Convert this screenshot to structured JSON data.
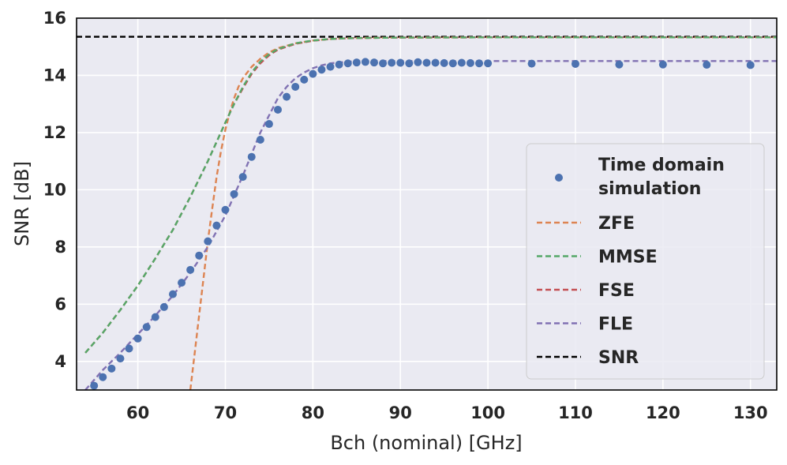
{
  "chart_data": {
    "type": "line",
    "title": "",
    "xlabel": "Bch (nominal) [GHz]",
    "ylabel": "SNR [dB]",
    "xlim": [
      53,
      133
    ],
    "ylim": [
      3,
      16
    ],
    "xticks": [
      60,
      70,
      80,
      90,
      100,
      110,
      120,
      130
    ],
    "yticks": [
      4,
      6,
      8,
      10,
      12,
      14,
      16
    ],
    "grid": true,
    "legend_position": "right",
    "colors": {
      "background": "#eaeaf2",
      "grid": "#ffffff",
      "time_domain": "#4c72b0",
      "zfe": "#dd8452",
      "mmse": "#55a868",
      "fse": "#c44e52",
      "fle": "#8172b3",
      "snr": "#000000"
    },
    "series": [
      {
        "name": "Time domain simulation",
        "name_lines": [
          "Time domain",
          "simulation"
        ],
        "style": "scatter",
        "color": "#4c72b0",
        "x": [
          55,
          56,
          57,
          58,
          59,
          60,
          61,
          62,
          63,
          64,
          65,
          66,
          67,
          68,
          69,
          70,
          71,
          72,
          73,
          74,
          75,
          76,
          77,
          78,
          79,
          80,
          81,
          82,
          83,
          84,
          85,
          86,
          87,
          88,
          89,
          90,
          91,
          92,
          93,
          94,
          95,
          96,
          97,
          98,
          99,
          100,
          105,
          110,
          115,
          120,
          125,
          130
        ],
        "y": [
          3.15,
          3.45,
          3.75,
          4.1,
          4.45,
          4.8,
          5.2,
          5.55,
          5.9,
          6.35,
          6.75,
          7.2,
          7.7,
          8.2,
          8.75,
          9.3,
          9.85,
          10.45,
          11.15,
          11.75,
          12.3,
          12.8,
          13.25,
          13.6,
          13.85,
          14.05,
          14.2,
          14.3,
          14.38,
          14.42,
          14.45,
          14.47,
          14.45,
          14.42,
          14.44,
          14.44,
          14.42,
          14.46,
          14.44,
          14.44,
          14.43,
          14.42,
          14.44,
          14.43,
          14.42,
          14.42,
          14.41,
          14.4,
          14.38,
          14.38,
          14.37,
          14.36
        ]
      },
      {
        "name": "ZFE",
        "style": "dashed",
        "color": "#dd8452",
        "x": [
          66,
          66.5,
          67,
          67.5,
          68,
          68.5,
          69,
          69.5,
          70,
          70.5,
          71,
          71.5,
          72,
          73,
          74,
          75,
          76,
          78,
          80,
          82,
          84,
          86,
          90,
          100,
          110,
          120,
          133
        ],
        "y": [
          3.0,
          4.3,
          5.6,
          6.9,
          8.2,
          9.35,
          10.45,
          11.35,
          12.1,
          12.7,
          13.2,
          13.6,
          13.9,
          14.3,
          14.58,
          14.8,
          14.95,
          15.12,
          15.22,
          15.27,
          15.3,
          15.31,
          15.32,
          15.33,
          15.33,
          15.33,
          15.33
        ]
      },
      {
        "name": "MMSE",
        "style": "dashed",
        "color": "#55a868",
        "x": [
          54,
          56,
          58,
          60,
          62,
          64,
          66,
          68,
          70,
          71,
          72,
          73,
          74,
          75,
          76,
          78,
          80,
          82,
          84,
          86,
          90,
          100,
          110,
          120,
          133
        ],
        "y": [
          4.3,
          5.0,
          5.8,
          6.65,
          7.6,
          8.6,
          9.75,
          11.0,
          12.35,
          13.0,
          13.6,
          14.1,
          14.48,
          14.74,
          14.92,
          15.12,
          15.22,
          15.27,
          15.3,
          15.31,
          15.32,
          15.33,
          15.33,
          15.33,
          15.33
        ]
      },
      {
        "name": "FSE",
        "style": "dashed",
        "color": "#c44e52",
        "x": [
          54,
          56,
          58,
          60,
          62,
          64,
          66,
          68,
          70,
          71,
          72,
          73,
          74,
          75,
          76,
          78,
          80,
          82,
          84,
          86,
          90,
          100,
          110,
          120,
          133
        ],
        "y": [
          4.3,
          5.0,
          5.8,
          6.65,
          7.6,
          8.6,
          9.75,
          11.0,
          12.35,
          13.0,
          13.55,
          14.05,
          14.42,
          14.7,
          14.9,
          15.1,
          15.21,
          15.27,
          15.3,
          15.31,
          15.32,
          15.33,
          15.33,
          15.33,
          15.33
        ]
      },
      {
        "name": "FLE",
        "style": "dashed",
        "color": "#8172b3",
        "x": [
          54,
          56,
          58,
          60,
          62,
          64,
          66,
          68,
          70,
          72,
          74,
          76,
          77,
          78,
          79,
          80,
          81,
          82,
          84,
          86,
          88,
          90,
          100,
          110,
          120,
          133
        ],
        "y": [
          3.0,
          3.7,
          4.3,
          4.95,
          5.6,
          6.3,
          7.1,
          8.0,
          9.1,
          10.5,
          12.0,
          13.2,
          13.6,
          13.9,
          14.1,
          14.25,
          14.35,
          14.42,
          14.48,
          14.5,
          14.5,
          14.5,
          14.5,
          14.5,
          14.5,
          14.5
        ]
      },
      {
        "name": "SNR",
        "style": "dashed",
        "color": "#000000",
        "x": [
          53,
          133
        ],
        "y": [
          15.35,
          15.35
        ]
      }
    ]
  }
}
